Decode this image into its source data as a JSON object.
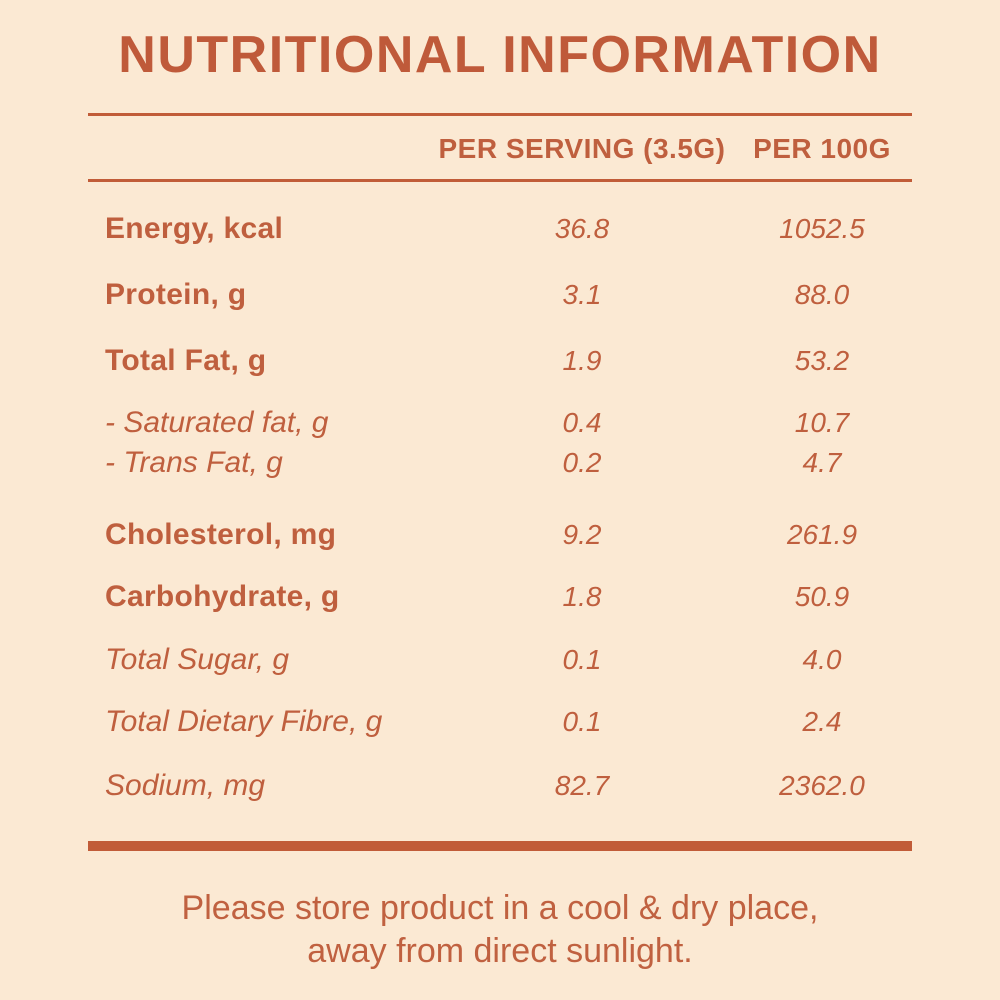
{
  "title": "NUTRITIONAL INFORMATION",
  "colors": {
    "background": "#fbe9d3",
    "text": "#bf5f3e",
    "rule": "#c15c38"
  },
  "table": {
    "columns": {
      "per_serving": "PER SERVING (3.5G)",
      "per_100g": "PER 100G"
    },
    "rows": [
      {
        "label": "Energy, kcal",
        "per_serving": "36.8",
        "per_100g": "1052.5"
      },
      {
        "label": "Protein, g",
        "per_serving": "3.1",
        "per_100g": "88.0"
      },
      {
        "label": "Total Fat, g",
        "per_serving": "1.9",
        "per_100g": "53.2"
      },
      {
        "label": "- Saturated fat, g",
        "per_serving": "0.4",
        "per_100g": "10.7"
      },
      {
        "label": "- Trans Fat, g",
        "per_serving": "0.2",
        "per_100g": "4.7"
      },
      {
        "label": "Cholesterol, mg",
        "per_serving": "9.2",
        "per_100g": "261.9"
      },
      {
        "label": "Carbohydrate, g",
        "per_serving": "1.8",
        "per_100g": "50.9"
      },
      {
        "label": "Total Sugar, g",
        "per_serving": "0.1",
        "per_100g": "4.0"
      },
      {
        "label": "Total Dietary Fibre, g",
        "per_serving": "0.1",
        "per_100g": "2.4"
      },
      {
        "label": "Sodium, mg",
        "per_serving": "82.7",
        "per_100g": "2362.0"
      }
    ]
  },
  "footer": {
    "line1": "Please store product in a cool & dry place,",
    "line2": "away from direct sunlight."
  }
}
